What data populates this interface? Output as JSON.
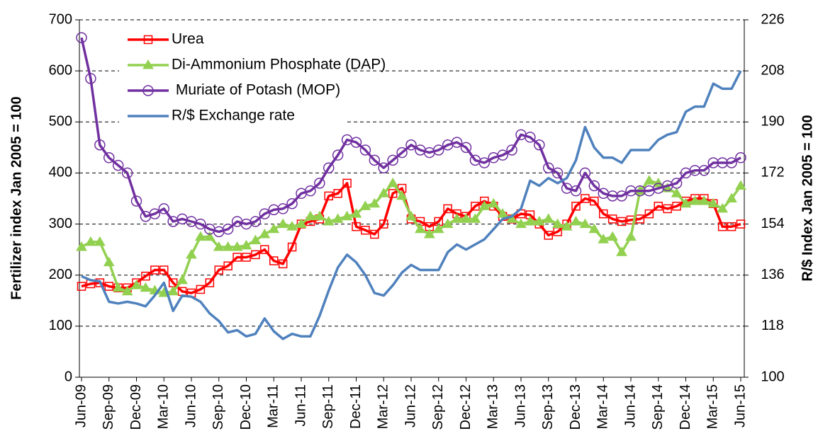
{
  "chart_data": {
    "type": "line",
    "ylabel": "Fertilizer index Jan 2005 = 100",
    "y2label": "R/$ Index Jan 2005 = 100",
    "categories": [
      "Jun-09",
      null,
      null,
      "Sep-09",
      null,
      null,
      "Dec-09",
      null,
      null,
      "Mar-10",
      null,
      null,
      "Jun-10",
      null,
      null,
      "Sep-10",
      null,
      null,
      "Dec-10",
      null,
      null,
      "Mar-11",
      null,
      null,
      "Jun-11",
      null,
      null,
      "Sep-11",
      null,
      null,
      "Dec-11",
      null,
      null,
      "Mar-12",
      null,
      null,
      "Jun-12",
      null,
      null,
      "Sep-12",
      null,
      null,
      "Dec-12",
      null,
      null,
      "Mar-13",
      null,
      null,
      "Jun-13",
      null,
      null,
      "Sep-13",
      null,
      null,
      "Dec-13",
      null,
      null,
      "Mar-14",
      null,
      null,
      "Jun-14",
      null,
      null,
      "Sep-14",
      null,
      null,
      "Dec-14",
      null,
      null,
      "Mar-15",
      null,
      null,
      "Jun-15"
    ],
    "ylim": [
      0,
      700
    ],
    "yticks": [
      0,
      100,
      200,
      300,
      400,
      500,
      600,
      700
    ],
    "y2lim": [
      100,
      226
    ],
    "y2ticks": [
      100,
      118,
      136,
      154,
      172,
      190,
      208,
      226
    ],
    "grid": true,
    "legend": "upper-left",
    "series": [
      {
        "name": "Urea",
        "color": "#ff0000",
        "marker": "square",
        "values": [
          178,
          183,
          185,
          178,
          175,
          175,
          185,
          198,
          210,
          210,
          185,
          168,
          165,
          172,
          185,
          210,
          218,
          235,
          235,
          240,
          250,
          228,
          222,
          255,
          300,
          305,
          310,
          355,
          360,
          380,
          295,
          288,
          280,
          300,
          360,
          370,
          310,
          305,
          295,
          305,
          330,
          320,
          315,
          335,
          345,
          335,
          315,
          310,
          320,
          318,
          300,
          278,
          285,
          300,
          335,
          350,
          345,
          320,
          310,
          305,
          308,
          310,
          320,
          335,
          330,
          335,
          345,
          350,
          350,
          340,
          295,
          295,
          300
        ]
      },
      {
        "name": "Di-Ammonium Phosphate (DAP)",
        "color": "#92d050",
        "marker": "triangle",
        "values": [
          255,
          265,
          265,
          225,
          175,
          168,
          180,
          175,
          170,
          165,
          168,
          190,
          240,
          275,
          275,
          255,
          255,
          255,
          258,
          268,
          280,
          290,
          300,
          295,
          300,
          315,
          315,
          305,
          310,
          315,
          320,
          335,
          340,
          360,
          380,
          355,
          315,
          290,
          280,
          290,
          300,
          310,
          310,
          310,
          335,
          340,
          320,
          310,
          300,
          305,
          305,
          310,
          300,
          295,
          305,
          300,
          290,
          270,
          275,
          245,
          275,
          365,
          385,
          380,
          370,
          360,
          340,
          345,
          345,
          340,
          330,
          350,
          375
        ]
      },
      {
        "name": " Muriate of Potash (MOP)",
        "color": "#7030a0",
        "marker": "circle",
        "values": [
          665,
          585,
          455,
          430,
          415,
          400,
          345,
          315,
          320,
          330,
          305,
          310,
          305,
          300,
          290,
          285,
          290,
          305,
          300,
          305,
          320,
          328,
          330,
          340,
          360,
          365,
          380,
          410,
          435,
          465,
          460,
          445,
          425,
          410,
          425,
          440,
          455,
          445,
          440,
          445,
          455,
          460,
          450,
          425,
          420,
          430,
          435,
          445,
          475,
          470,
          455,
          410,
          400,
          370,
          365,
          400,
          375,
          360,
          355,
          355,
          365,
          365,
          365,
          370,
          375,
          380,
          400,
          405,
          405,
          420,
          420,
          420,
          430
        ]
      },
      {
        "name": "R/$ Exchange rate",
        "color": "#4f81bd",
        "axis": "y2",
        "values": [
          135.6,
          134.2,
          133.8,
          126.6,
          126,
          126.6,
          126,
          125,
          128.8,
          133.3,
          123.4,
          128.8,
          128.4,
          126.6,
          122.5,
          119.8,
          115.8,
          116.6,
          114.4,
          115.3,
          120.7,
          116.2,
          113.5,
          115.3,
          114.4,
          114.4,
          121.6,
          130.6,
          138.7,
          143.2,
          140.5,
          136,
          129.7,
          128.8,
          132.4,
          136.9,
          139.6,
          137.8,
          137.8,
          137.8,
          144.1,
          146.8,
          145,
          146.8,
          148.6,
          152.2,
          155.8,
          156.7,
          159.4,
          169.3,
          167.5,
          170.2,
          168.4,
          170.2,
          176.5,
          188.2,
          181,
          177.4,
          177.4,
          175.6,
          180.1,
          180.1,
          180.1,
          183.7,
          185.5,
          186.4,
          193.6,
          195.4,
          195.4,
          203.5,
          201.7,
          201.7,
          208
        ]
      }
    ]
  }
}
